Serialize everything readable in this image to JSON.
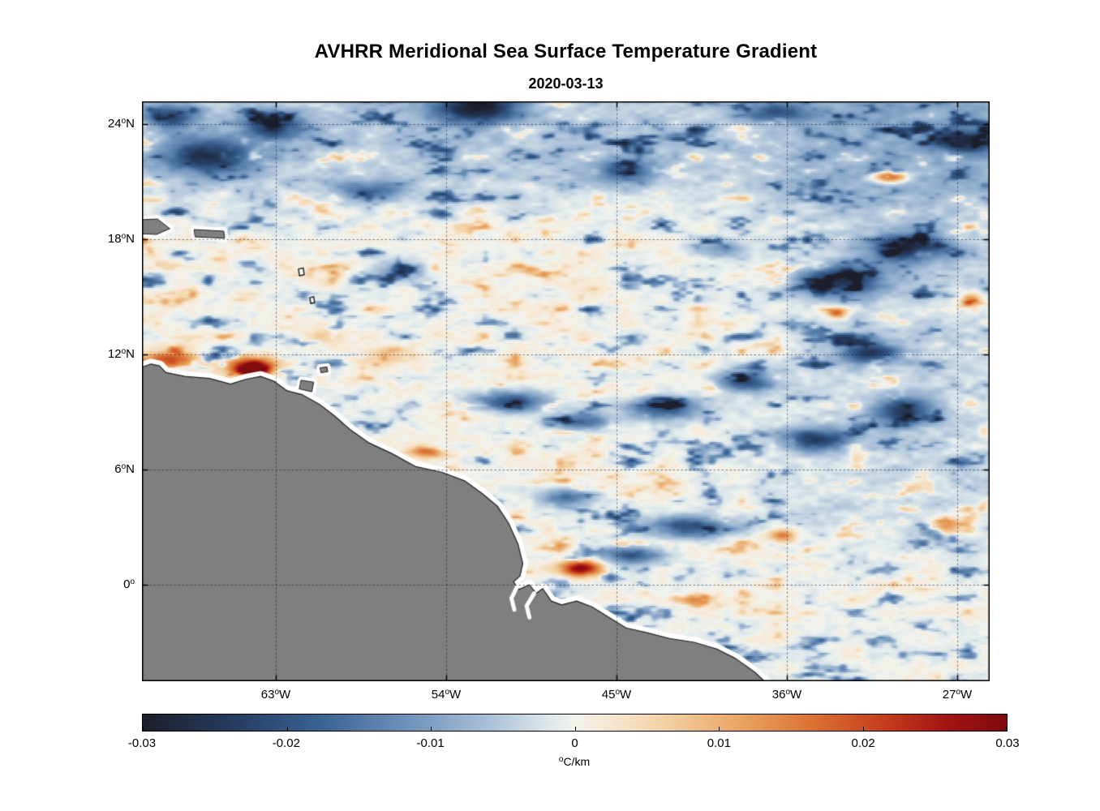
{
  "chart_data": {
    "type": "heatmap",
    "title": "AVHRR Meridional Sea Surface Temperature Gradient",
    "subtitle": "2020-03-13",
    "x_axis": {
      "ticks": [
        {
          "num": "63",
          "deg": "o",
          "dir": "W",
          "lon": -63
        },
        {
          "num": "54",
          "deg": "o",
          "dir": "W",
          "lon": -54
        },
        {
          "num": "45",
          "deg": "o",
          "dir": "W",
          "lon": -45
        },
        {
          "num": "36",
          "deg": "o",
          "dir": "W",
          "lon": -36
        },
        {
          "num": "27",
          "deg": "o",
          "dir": "W",
          "lon": -27
        }
      ],
      "range_lon": [
        -70.1,
        -25.3
      ]
    },
    "y_axis": {
      "ticks": [
        {
          "num": "24",
          "deg": "o",
          "dir": "N",
          "lat": 24
        },
        {
          "num": "18",
          "deg": "o",
          "dir": "N",
          "lat": 18
        },
        {
          "num": "12",
          "deg": "o",
          "dir": "N",
          "lat": 12
        },
        {
          "num": "6",
          "deg": "o",
          "dir": "N",
          "lat": 6
        },
        {
          "num": "0",
          "deg": "o",
          "dir": "",
          "lat": 0
        }
      ],
      "range_lat": [
        -5.0,
        25.2
      ]
    },
    "grid": "dotted",
    "value_range": [
      -0.03,
      0.03
    ],
    "colorbar": {
      "orientation": "horizontal",
      "min": -0.03,
      "max": 0.03,
      "tick_labels": [
        "-0.03",
        "-0.02",
        "-0.01",
        "0",
        "0.01",
        "0.02",
        "0.03"
      ],
      "unit_deg": "o",
      "unit_text": "C/km"
    },
    "colormap_stops": [
      [
        0.0,
        "#1c1f2b"
      ],
      [
        0.1,
        "#253a5e"
      ],
      [
        0.2,
        "#38608f"
      ],
      [
        0.3,
        "#6a8fb8"
      ],
      [
        0.4,
        "#a9c0d8"
      ],
      [
        0.47,
        "#dde7ea"
      ],
      [
        0.5,
        "#f1f3ed"
      ],
      [
        0.53,
        "#f6ead8"
      ],
      [
        0.6,
        "#f3d3a8"
      ],
      [
        0.7,
        "#e8a05c"
      ],
      [
        0.78,
        "#d96f31"
      ],
      [
        0.86,
        "#c43c1d"
      ],
      [
        0.93,
        "#a31313"
      ],
      [
        1.0,
        "#7d0a0e"
      ]
    ],
    "land_color": "#7f7f7f",
    "coast_nodata_color": "#ffffff",
    "noise": {
      "seed": 11,
      "octaves": [
        [
          46,
          17,
          0.5
        ],
        [
          20,
          8.5,
          0.3
        ],
        [
          9,
          4.2,
          0.2
        ]
      ]
    },
    "notable_features": [
      [
        -66.5,
        22.4,
        2.4,
        0.9,
        -0.022
      ],
      [
        -63.2,
        23.9,
        1.6,
        0.7,
        -0.018
      ],
      [
        -68.6,
        24.4,
        1.3,
        0.6,
        -0.016
      ],
      [
        -52.4,
        24.9,
        2.2,
        0.8,
        -0.026
      ],
      [
        -58.0,
        20.6,
        1.9,
        0.55,
        -0.012
      ],
      [
        -56.5,
        16.4,
        1.6,
        0.5,
        -0.01
      ],
      [
        -44.6,
        21.6,
        2.0,
        0.6,
        -0.013
      ],
      [
        -50.6,
        9.6,
        2.2,
        0.55,
        -0.02
      ],
      [
        -46.8,
        8.5,
        1.6,
        0.5,
        -0.016
      ],
      [
        -42.6,
        9.2,
        2.1,
        0.65,
        -0.019
      ],
      [
        -38.2,
        10.6,
        1.6,
        0.6,
        -0.019
      ],
      [
        -33.2,
        15.9,
        2.3,
        0.8,
        -0.022
      ],
      [
        -29.6,
        17.6,
        2.0,
        0.75,
        -0.024
      ],
      [
        -31.6,
        12.1,
        1.7,
        0.6,
        -0.021
      ],
      [
        -34.6,
        7.6,
        1.9,
        0.6,
        -0.022
      ],
      [
        -29.9,
        9.1,
        1.5,
        0.8,
        -0.02
      ],
      [
        -41.2,
        3.1,
        2.3,
        0.6,
        -0.02
      ],
      [
        -44.3,
        1.6,
        1.6,
        0.5,
        -0.018
      ],
      [
        -47.8,
        4.6,
        1.5,
        0.5,
        -0.015
      ],
      [
        -26.6,
        23.1,
        1.6,
        0.6,
        -0.018
      ],
      [
        -36.6,
        24.6,
        1.6,
        0.5,
        -0.014
      ],
      [
        -39.5,
        17.5,
        1.4,
        0.5,
        -0.01
      ],
      [
        -68.6,
        11.7,
        1.5,
        0.5,
        0.02
      ],
      [
        -64.4,
        11.5,
        1.5,
        0.5,
        0.022
      ],
      [
        -64.2,
        11.2,
        0.8,
        0.3,
        0.03
      ],
      [
        -55.1,
        6.95,
        0.9,
        0.3,
        0.018
      ],
      [
        -46.9,
        0.9,
        1.1,
        0.42,
        0.03
      ],
      [
        -30.6,
        21.3,
        0.9,
        0.32,
        0.026
      ],
      [
        -33.4,
        14.2,
        0.55,
        0.3,
        0.02
      ],
      [
        -36.3,
        2.6,
        0.7,
        0.35,
        0.018
      ],
      [
        -27.6,
        3.1,
        0.9,
        0.45,
        0.016
      ],
      [
        -26.3,
        14.9,
        0.6,
        0.4,
        0.016
      ],
      [
        -60.5,
        13.0,
        1.2,
        0.5,
        0.008
      ],
      [
        -57.5,
        12.0,
        1.5,
        0.5,
        0.007
      ]
    ],
    "geo": {
      "coast": [
        [
          -70.3,
          11.25
        ],
        [
          -69.6,
          11.5
        ],
        [
          -69.15,
          11.4
        ],
        [
          -68.8,
          11.05
        ],
        [
          -67.8,
          10.85
        ],
        [
          -66.5,
          10.75
        ],
        [
          -65.4,
          10.45
        ],
        [
          -64.6,
          10.7
        ],
        [
          -63.8,
          10.85
        ],
        [
          -63.1,
          10.6
        ],
        [
          -62.4,
          10.1
        ],
        [
          -61.6,
          9.9
        ],
        [
          -60.7,
          9.4
        ],
        [
          -59.9,
          8.8
        ],
        [
          -59.1,
          8.1
        ],
        [
          -58.1,
          7.4
        ],
        [
          -56.9,
          6.85
        ],
        [
          -55.6,
          6.15
        ],
        [
          -54.2,
          5.85
        ],
        [
          -53.0,
          5.4
        ],
        [
          -52.1,
          4.75
        ],
        [
          -51.3,
          4.1
        ],
        [
          -50.7,
          3.2
        ],
        [
          -50.2,
          2.1
        ],
        [
          -49.95,
          1.1
        ],
        [
          -50.1,
          0.45
        ],
        [
          -50.45,
          0.15
        ],
        [
          -50.15,
          -0.25
        ],
        [
          -49.6,
          0.0
        ],
        [
          -49.25,
          -0.45
        ],
        [
          -48.9,
          -0.2
        ],
        [
          -48.45,
          -0.85
        ],
        [
          -47.9,
          -1.05
        ],
        [
          -47.1,
          -0.85
        ],
        [
          -46.3,
          -1.15
        ],
        [
          -45.4,
          -1.7
        ],
        [
          -44.5,
          -2.25
        ],
        [
          -43.4,
          -2.5
        ],
        [
          -42.2,
          -2.8
        ],
        [
          -40.9,
          -3.0
        ],
        [
          -39.7,
          -3.35
        ],
        [
          -38.7,
          -3.85
        ],
        [
          -37.7,
          -4.55
        ],
        [
          -37.0,
          -5.2
        ]
      ],
      "coast_closure": [
        [
          -36.8,
          -6.5
        ],
        [
          -71.5,
          -6.5
        ]
      ],
      "islands": [
        [
          [
            -70.5,
            19.0
          ],
          [
            -69.25,
            19.05
          ],
          [
            -68.6,
            18.55
          ],
          [
            -69.3,
            18.25
          ],
          [
            -70.5,
            18.3
          ]
        ],
        [
          [
            -67.3,
            18.5
          ],
          [
            -65.75,
            18.42
          ],
          [
            -65.7,
            18.05
          ],
          [
            -67.25,
            18.12
          ]
        ],
        [
          [
            -61.65,
            10.65
          ],
          [
            -61.0,
            10.55
          ],
          [
            -61.1,
            10.05
          ],
          [
            -61.75,
            10.2
          ]
        ],
        [
          [
            -60.65,
            11.3
          ],
          [
            -60.3,
            11.35
          ],
          [
            -60.25,
            11.1
          ],
          [
            -60.6,
            11.05
          ]
        ]
      ],
      "islets": [
        [
          [
            -61.8,
            16.45
          ],
          [
            -61.55,
            16.5
          ],
          [
            -61.5,
            16.15
          ],
          [
            -61.75,
            16.1
          ]
        ],
        [
          [
            -61.2,
            14.95
          ],
          [
            -61.0,
            15.0
          ],
          [
            -60.95,
            14.7
          ],
          [
            -61.15,
            14.65
          ]
        ]
      ],
      "rivers": [
        [
          [
            -50.2,
            0.0
          ],
          [
            -50.55,
            -0.7
          ],
          [
            -50.4,
            -1.3
          ]
        ],
        [
          [
            -49.35,
            -0.45
          ],
          [
            -49.75,
            -1.1
          ],
          [
            -49.6,
            -1.7
          ]
        ]
      ]
    }
  }
}
